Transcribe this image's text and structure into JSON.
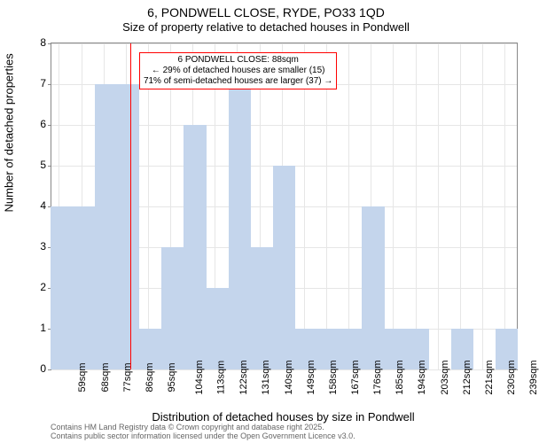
{
  "title_main": "6, PONDWELL CLOSE, RYDE, PO33 1QD",
  "title_sub": "Size of property relative to detached houses in Pondwell",
  "ylabel": "Number of detached properties",
  "xlabel": "Distribution of detached houses by size in Pondwell",
  "footer_line1": "Contains HM Land Registry data © Crown copyright and database right 2025.",
  "footer_line2": "Contains public sector information licensed under the Open Government Licence v3.0.",
  "chart": {
    "type": "histogram",
    "ylim": [
      0,
      8
    ],
    "yticks": [
      0,
      1,
      2,
      3,
      4,
      5,
      6,
      7,
      8
    ],
    "xticks": [
      "59sqm",
      "68sqm",
      "77sqm",
      "86sqm",
      "95sqm",
      "104sqm",
      "113sqm",
      "122sqm",
      "131sqm",
      "140sqm",
      "149sqm",
      "158sqm",
      "167sqm",
      "176sqm",
      "185sqm",
      "194sqm",
      "203sqm",
      "212sqm",
      "221sqm",
      "230sqm",
      "239sqm"
    ],
    "xtick_positions": [
      59,
      68,
      77,
      86,
      95,
      104,
      113,
      122,
      131,
      140,
      149,
      158,
      167,
      176,
      185,
      194,
      203,
      212,
      221,
      230,
      239
    ],
    "x_range": [
      56,
      244
    ],
    "bars": [
      {
        "x": 60,
        "h": 4
      },
      {
        "x": 69,
        "h": 4
      },
      {
        "x": 78,
        "h": 7
      },
      {
        "x": 87,
        "h": 7
      },
      {
        "x": 96,
        "h": 1
      },
      {
        "x": 105,
        "h": 3
      },
      {
        "x": 114,
        "h": 6
      },
      {
        "x": 123,
        "h": 2
      },
      {
        "x": 132,
        "h": 7
      },
      {
        "x": 141,
        "h": 3
      },
      {
        "x": 150,
        "h": 5
      },
      {
        "x": 159,
        "h": 1
      },
      {
        "x": 168,
        "h": 1
      },
      {
        "x": 177,
        "h": 1
      },
      {
        "x": 186,
        "h": 4
      },
      {
        "x": 195,
        "h": 1
      },
      {
        "x": 204,
        "h": 1
      },
      {
        "x": 222,
        "h": 1
      },
      {
        "x": 240,
        "h": 1
      }
    ],
    "bar_width_units": 9,
    "bar_color": "#c4d5ec",
    "grid_color": "#e6e6e6",
    "background_color": "#ffffff",
    "refline_x": 88,
    "refline_color": "#ff0000",
    "annotation": {
      "line1": "6 PONDWELL CLOSE: 88sqm",
      "line2": "← 29% of detached houses are smaller (15)",
      "line3": "71% of semi-detached houses are larger (37) →",
      "border_color": "#ff0000",
      "left_units": 90,
      "y_value": 7.4
    },
    "title_fontsize": 14,
    "label_fontsize": 13,
    "tick_fontsize": 12
  }
}
